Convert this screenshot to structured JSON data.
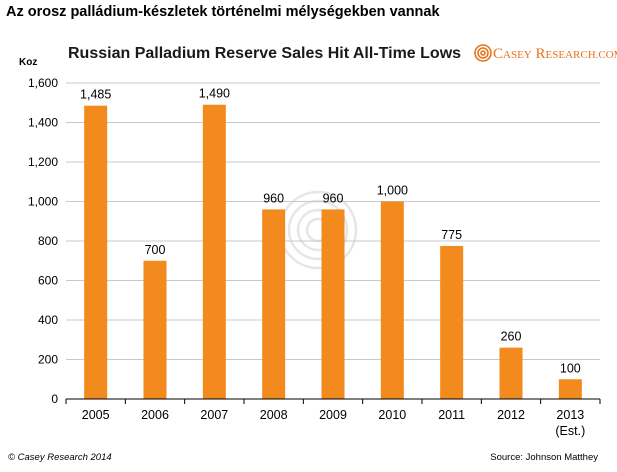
{
  "page": {
    "title": "Az orosz palládium-készletek történelmi mélységekben vannak"
  },
  "logo": {
    "text_part1": "C",
    "text_part2": "ASEY",
    "text_part3": " R",
    "text_part4": "ESEARCH",
    "text_part5": ".COM"
  },
  "footer": {
    "copyright": "© Casey Research 2014",
    "source": "Source: Johnson Matthey"
  },
  "colors": {
    "bar": "#F28A1E",
    "grid": "#c8c8c8",
    "logo": "#E8731B"
  },
  "chart_data": {
    "type": "bar",
    "title": "Russian Palladium Reserve Sales Hit All-Time Lows",
    "unit_label": "Koz",
    "categories": [
      "2005",
      "2006",
      "2007",
      "2008",
      "2009",
      "2010",
      "2011",
      "2012",
      "2013"
    ],
    "category_sublabels": [
      "",
      "",
      "",
      "",
      "",
      "",
      "",
      "",
      "(Est.)"
    ],
    "values": [
      1485,
      700,
      1490,
      960,
      960,
      1000,
      775,
      260,
      100
    ],
    "value_labels": [
      "1,485",
      "700",
      "1,490",
      "960",
      "960",
      "1,000",
      "775",
      "260",
      "100"
    ],
    "ylim": [
      0,
      1600
    ],
    "yticks": [
      0,
      200,
      400,
      600,
      800,
      1000,
      1200,
      1400,
      1600
    ],
    "ytick_labels": [
      "0",
      "200",
      "400",
      "600",
      "800",
      "1,000",
      "1,200",
      "1,400",
      "1,600"
    ],
    "grid": true,
    "legend": "none"
  }
}
